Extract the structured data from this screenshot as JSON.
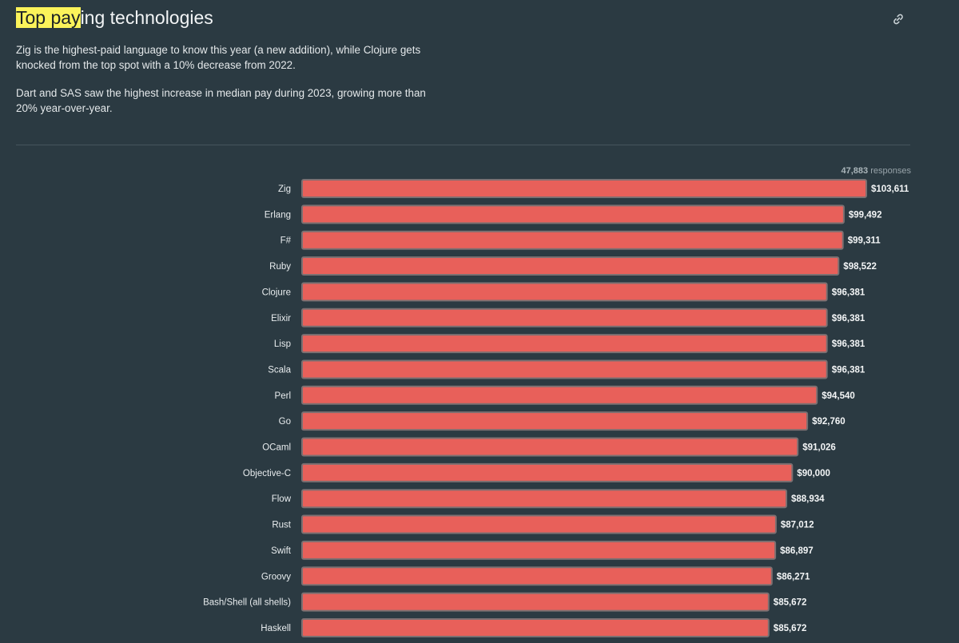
{
  "header": {
    "title_highlight": "Top pay",
    "title_rest": "ing technologies",
    "link_icon": "link-icon"
  },
  "description": {
    "p1": "Zig is the highest-paid language to know this year (a new addition), while Clojure gets knocked from the top spot with a 10% decrease from 2022.",
    "p2": "Dart and SAS saw the highest increase in median pay during 2023, growing more than 20% year-over-year."
  },
  "responses": {
    "count": "47,883",
    "label": "responses"
  },
  "colors": {
    "bar_fill": "#e8605a",
    "bar_stroke": "#7c7072",
    "highlight": "#fbf35a",
    "background": "#2b3a42"
  },
  "chart_data": {
    "type": "bar",
    "orientation": "horizontal",
    "title": "Top paying technologies",
    "xlabel": "",
    "ylabel": "",
    "xlim": [
      0,
      103611
    ],
    "categories": [
      "Zig",
      "Erlang",
      "F#",
      "Ruby",
      "Clojure",
      "Elixir",
      "Lisp",
      "Scala",
      "Perl",
      "Go",
      "OCaml",
      "Objective-C",
      "Flow",
      "Rust",
      "Swift",
      "Groovy",
      "Bash/Shell (all shells)",
      "Haskell"
    ],
    "values": [
      103611,
      99492,
      99311,
      98522,
      96381,
      96381,
      96381,
      96381,
      94540,
      92760,
      91026,
      90000,
      88934,
      87012,
      86897,
      86271,
      85672,
      85672
    ],
    "value_labels": [
      "$103,611",
      "$99,492",
      "$99,311",
      "$98,522",
      "$96,381",
      "$96,381",
      "$96,381",
      "$96,381",
      "$94,540",
      "$92,760",
      "$91,026",
      "$90,000",
      "$88,934",
      "$87,012",
      "$86,897",
      "$86,271",
      "$85,672",
      "$85,672"
    ]
  }
}
